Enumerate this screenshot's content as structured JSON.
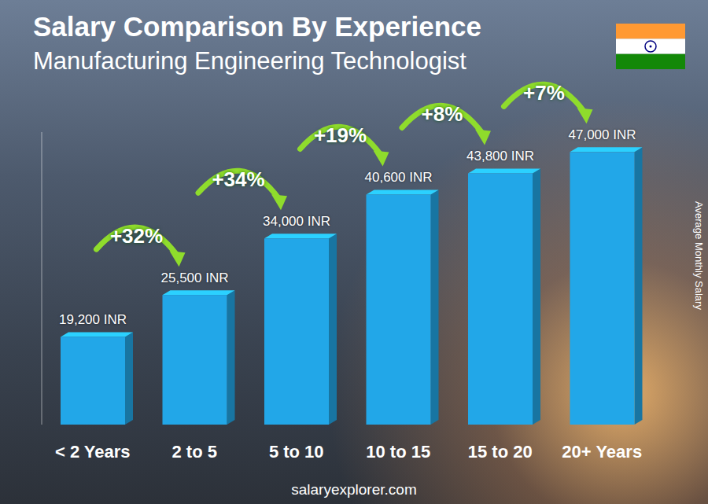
{
  "chart_data": {
    "type": "bar",
    "title": "Salary Comparison By Experience",
    "subtitle": "Manufacturing Engineering Technologist",
    "categories": [
      "< 2 Years",
      "2 to 5",
      "5 to 10",
      "10 to 15",
      "15 to 20",
      "20+ Years"
    ],
    "values": [
      19200,
      25500,
      34000,
      40600,
      43800,
      47000
    ],
    "value_labels": [
      "19,200 INR",
      "25,500 INR",
      "34,000 INR",
      "40,600 INR",
      "43,800 INR",
      "47,000 INR"
    ],
    "growth_labels": [
      null,
      "+32%",
      "+34%",
      "+19%",
      "+8%",
      "+7%"
    ],
    "y_label": "Average Monthly Salary",
    "footer": "salaryexplorer.com",
    "color": "#22a7e8",
    "ylim": [
      6000,
      50000
    ],
    "tick_labels": "x",
    "data_labels": true
  }
}
